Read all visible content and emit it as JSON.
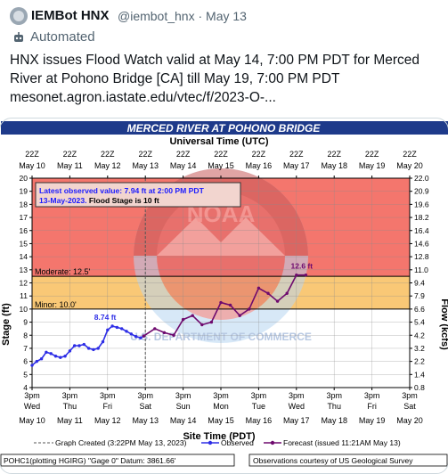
{
  "post": {
    "author_name": "IEMBot HNX",
    "author_handle": "@iembot_hnx",
    "date": "May 13",
    "automated_label": "Automated",
    "text": "HNX issues Flood Watch valid at May 14, 7:00 PM PDT for Merced River at Pohono Bridge [CA] till May 19, 7:00 PM PDT\nmesonet.agron.iastate.edu/vtec/f/2023-O-..."
  },
  "colors": {
    "header_bg": "#1e3a8a",
    "red_zone": "#f4766d",
    "orange_zone": "#f9c876",
    "observed": "#2e2ee6",
    "forecast": "#6e0a6e"
  },
  "chart": {
    "title": "MERCED RIVER AT POHONO BRIDGE",
    "top_axis_label": "Universal Time (UTC)",
    "bottom_axis_label": "Site Time (PDT)",
    "y_left_label": "Stage (ft)",
    "y_right_label": "Flow (kcfs)",
    "top_ticks": [
      {
        "time": "22Z",
        "date": "May 10"
      },
      {
        "time": "22Z",
        "date": "May 11"
      },
      {
        "time": "22Z",
        "date": "May 12"
      },
      {
        "time": "22Z",
        "date": "May 13"
      },
      {
        "time": "22Z",
        "date": "May 14"
      },
      {
        "time": "22Z",
        "date": "May 15"
      },
      {
        "time": "22Z",
        "date": "May 16"
      },
      {
        "time": "22Z",
        "date": "May 17"
      },
      {
        "time": "22Z",
        "date": "May 18"
      },
      {
        "time": "22Z",
        "date": "May 19"
      },
      {
        "time": "22Z",
        "date": "May 20"
      }
    ],
    "bottom_ticks": [
      {
        "time": "3pm",
        "day": "Wed",
        "date": "May 10"
      },
      {
        "time": "3pm",
        "day": "Thu",
        "date": "May 11"
      },
      {
        "time": "3pm",
        "day": "Fri",
        "date": "May 12"
      },
      {
        "time": "3pm",
        "day": "Sat",
        "date": "May 13"
      },
      {
        "time": "3pm",
        "day": "Sun",
        "date": "May 14"
      },
      {
        "time": "3pm",
        "day": "Mon",
        "date": "May 15"
      },
      {
        "time": "3pm",
        "day": "Tue",
        "date": "May 16"
      },
      {
        "time": "3pm",
        "day": "Wed",
        "date": "May 17"
      },
      {
        "time": "3pm",
        "day": "Thu",
        "date": "May 18"
      },
      {
        "time": "3pm",
        "day": "Fri",
        "date": "May 19"
      },
      {
        "time": "3pm",
        "day": "Sat",
        "date": "May 20"
      }
    ],
    "left_ticks": [
      "20",
      "19",
      "18",
      "17",
      "16",
      "15",
      "14",
      "13",
      "12",
      "11",
      "10",
      "9",
      "8",
      "7",
      "6",
      "5",
      "4"
    ],
    "right_ticks": [
      "22.0",
      "20.9",
      "19.6",
      "18.2",
      "16.4",
      "14.6",
      "12.8",
      "11.0",
      "9.4",
      "7.9",
      "6.6",
      "5.4",
      "4.2",
      "3.2",
      "2.2",
      "1.4",
      "0.8"
    ],
    "moderate_label": "Moderate: 12.5'",
    "minor_label": "Minor: 10.0'",
    "info_line1": "Latest observed value: 7.94 ft at 2:00 PM PDT",
    "info_line2_date": "13-May-2023.",
    "info_line2_rest": " Flood Stage is 10 ft",
    "obs_peak_label": "8.74 ft",
    "fcst_peak_label": "12.6 ft",
    "watermark": "NOAA",
    "watermark_ring": "NATIONAL OCEANIC AND ATMOSPHERIC ADMINISTRATION",
    "watermark_bottom": "U.S. DEPARTMENT OF COMMERCE",
    "legend_created": "Graph Created (3:22PM May 13, 2023)",
    "legend_observed": "Observed",
    "legend_forecast": "Forecast (issued 11:21AM May 13)",
    "footer_left": "POHC1(plotting HGIRG) \"Gage 0\" Datum: 3861.66'",
    "footer_right": "Observations courtesy of US Geological Survey"
  },
  "chart_data": {
    "type": "line",
    "title": "MERCED RIVER AT POHONO BRIDGE",
    "xlabel": "Site Time (PDT)",
    "ylabel": "Stage (ft)",
    "y2label": "Flow (kcfs)",
    "ylim": [
      4,
      20
    ],
    "xlim": [
      "May 10 3pm",
      "May 20 3pm"
    ],
    "thresholds": [
      {
        "name": "Moderate",
        "value": 12.5
      },
      {
        "name": "Minor",
        "value": 10.0
      }
    ],
    "series": [
      {
        "name": "Observed",
        "x": [
          "May 10 3pm",
          "May 10 6pm",
          "May 10 9pm",
          "May 11 12am",
          "May 11 3am",
          "May 11 6am",
          "May 11 9am",
          "May 11 12pm",
          "May 11 3pm",
          "May 11 6pm",
          "May 11 9pm",
          "May 12 12am",
          "May 12 3am",
          "May 12 6am",
          "May 12 9am",
          "May 12 12pm",
          "May 12 3pm",
          "May 12 6pm",
          "May 12 9pm",
          "May 13 12am",
          "May 13 3am",
          "May 13 6am",
          "May 13 9am",
          "May 13 12pm",
          "May 13 2pm"
        ],
        "values": [
          5.7,
          6.0,
          6.2,
          6.7,
          6.6,
          6.4,
          6.3,
          6.4,
          6.8,
          7.2,
          7.2,
          7.3,
          7.0,
          6.9,
          7.0,
          7.5,
          8.4,
          8.7,
          8.6,
          8.5,
          8.3,
          8.1,
          7.9,
          7.8,
          7.94
        ]
      },
      {
        "name": "Forecast",
        "x": [
          "May 13 2pm",
          "May 13 9pm",
          "May 14 3am",
          "May 14 9am",
          "May 14 3pm",
          "May 14 9pm",
          "May 15 3am",
          "May 15 9am",
          "May 15 3pm",
          "May 15 9pm",
          "May 16 3am",
          "May 16 9am",
          "May 16 3pm",
          "May 16 9pm",
          "May 17 3am",
          "May 17 9am",
          "May 17 3pm",
          "May 17 9pm"
        ],
        "values": [
          7.94,
          8.5,
          8.2,
          8.0,
          9.2,
          9.5,
          8.8,
          9.0,
          10.5,
          10.3,
          9.5,
          10.0,
          11.6,
          11.2,
          10.6,
          11.2,
          12.6,
          12.6
        ]
      }
    ]
  }
}
